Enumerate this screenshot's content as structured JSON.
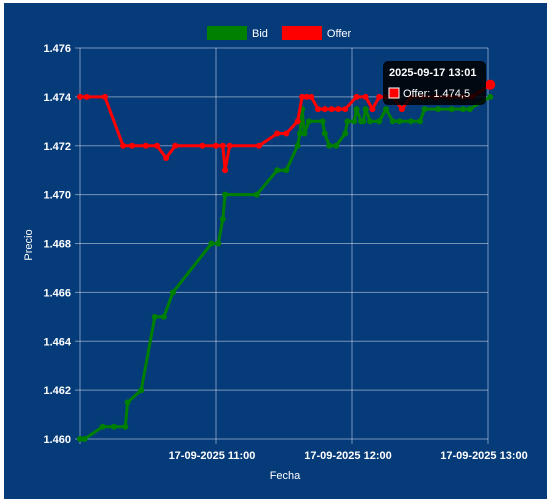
{
  "chart_data": {
    "type": "line",
    "xlabel": "Fecha",
    "ylabel": "Precio",
    "x_ticks": [
      "17-09-2025 11:00",
      "17-09-2025 12:00",
      "17-09-2025 13:00"
    ],
    "y_ticks": [
      "1.460",
      "1.462",
      "1.464",
      "1.466",
      "1.468",
      "1.470",
      "1.472",
      "1.474",
      "1.476"
    ],
    "ylim": [
      1.46,
      1.476
    ],
    "xlim": [
      "2025-09-17 10:00",
      "2025-09-17 13:00"
    ],
    "grid": true,
    "legend_position": "top",
    "series": [
      {
        "name": "Bid",
        "color": "#008000",
        "points": [
          [
            "10:00",
            1.46
          ],
          [
            "10:02",
            1.46
          ],
          [
            "10:10",
            1.4605
          ],
          [
            "10:15",
            1.4605
          ],
          [
            "10:20",
            1.4605
          ],
          [
            "10:21",
            1.4615
          ],
          [
            "10:27",
            1.462
          ],
          [
            "10:33",
            1.465
          ],
          [
            "10:37",
            1.465
          ],
          [
            "10:41",
            1.466
          ],
          [
            "10:58",
            1.468
          ],
          [
            "11:01",
            1.468
          ],
          [
            "11:03",
            1.469
          ],
          [
            "11:04",
            1.47
          ],
          [
            "11:18",
            1.47
          ],
          [
            "11:27",
            1.471
          ],
          [
            "11:31",
            1.471
          ],
          [
            "11:36",
            1.472
          ],
          [
            "11:37",
            1.4725
          ],
          [
            "11:38",
            1.4735
          ],
          [
            "11:39",
            1.4725
          ],
          [
            "11:41",
            1.473
          ],
          [
            "11:47",
            1.473
          ],
          [
            "11:48",
            1.4725
          ],
          [
            "11:50",
            1.472
          ],
          [
            "11:53",
            1.472
          ],
          [
            "11:57",
            1.4725
          ],
          [
            "11:58",
            1.473
          ],
          [
            "12:01",
            1.473
          ],
          [
            "12:02",
            1.4735
          ],
          [
            "12:04",
            1.473
          ],
          [
            "12:05",
            1.473
          ],
          [
            "12:06",
            1.4735
          ],
          [
            "12:08",
            1.473
          ],
          [
            "12:12",
            1.473
          ],
          [
            "12:15",
            1.4735
          ],
          [
            "12:18",
            1.473
          ],
          [
            "12:21",
            1.473
          ],
          [
            "12:26",
            1.473
          ],
          [
            "12:30",
            1.473
          ],
          [
            "12:32",
            1.4735
          ],
          [
            "12:38",
            1.4735
          ],
          [
            "12:44",
            1.4735
          ],
          [
            "12:49",
            1.4735
          ],
          [
            "12:52",
            1.4735
          ],
          [
            "13:01",
            1.474
          ]
        ]
      },
      {
        "name": "Offer",
        "color": "#ff0000",
        "points": [
          [
            "10:00",
            1.474
          ],
          [
            "10:03",
            1.474
          ],
          [
            "10:11",
            1.474
          ],
          [
            "10:19",
            1.472
          ],
          [
            "10:23",
            1.472
          ],
          [
            "10:29",
            1.472
          ],
          [
            "10:34",
            1.472
          ],
          [
            "10:38",
            1.4715
          ],
          [
            "10:42",
            1.472
          ],
          [
            "10:54",
            1.472
          ],
          [
            "11:00",
            1.472
          ],
          [
            "11:03",
            1.472
          ],
          [
            "11:04",
            1.471
          ],
          [
            "11:06",
            1.472
          ],
          [
            "11:19",
            1.472
          ],
          [
            "11:27",
            1.4725
          ],
          [
            "11:31",
            1.4725
          ],
          [
            "11:36",
            1.473
          ],
          [
            "11:38",
            1.474
          ],
          [
            "11:40",
            1.474
          ],
          [
            "11:42",
            1.474
          ],
          [
            "11:45",
            1.4735
          ],
          [
            "11:48",
            1.4735
          ],
          [
            "11:51",
            1.4735
          ],
          [
            "11:54",
            1.4735
          ],
          [
            "11:57",
            1.4735
          ],
          [
            "12:02",
            1.474
          ],
          [
            "12:06",
            1.474
          ],
          [
            "12:09",
            1.4735
          ],
          [
            "12:12",
            1.474
          ],
          [
            "12:15",
            1.474
          ],
          [
            "12:18",
            1.474
          ],
          [
            "12:22",
            1.4735
          ],
          [
            "12:26",
            1.474
          ],
          [
            "12:31",
            1.474
          ],
          [
            "12:37",
            1.474
          ],
          [
            "12:43",
            1.474
          ],
          [
            "12:49",
            1.474
          ],
          [
            "12:53",
            1.474
          ],
          [
            "13:01",
            1.4745
          ]
        ]
      }
    ],
    "tooltip": {
      "title": "2025-09-17 13:01",
      "body": "Offer: 1.474,5",
      "series": "Offer"
    }
  }
}
